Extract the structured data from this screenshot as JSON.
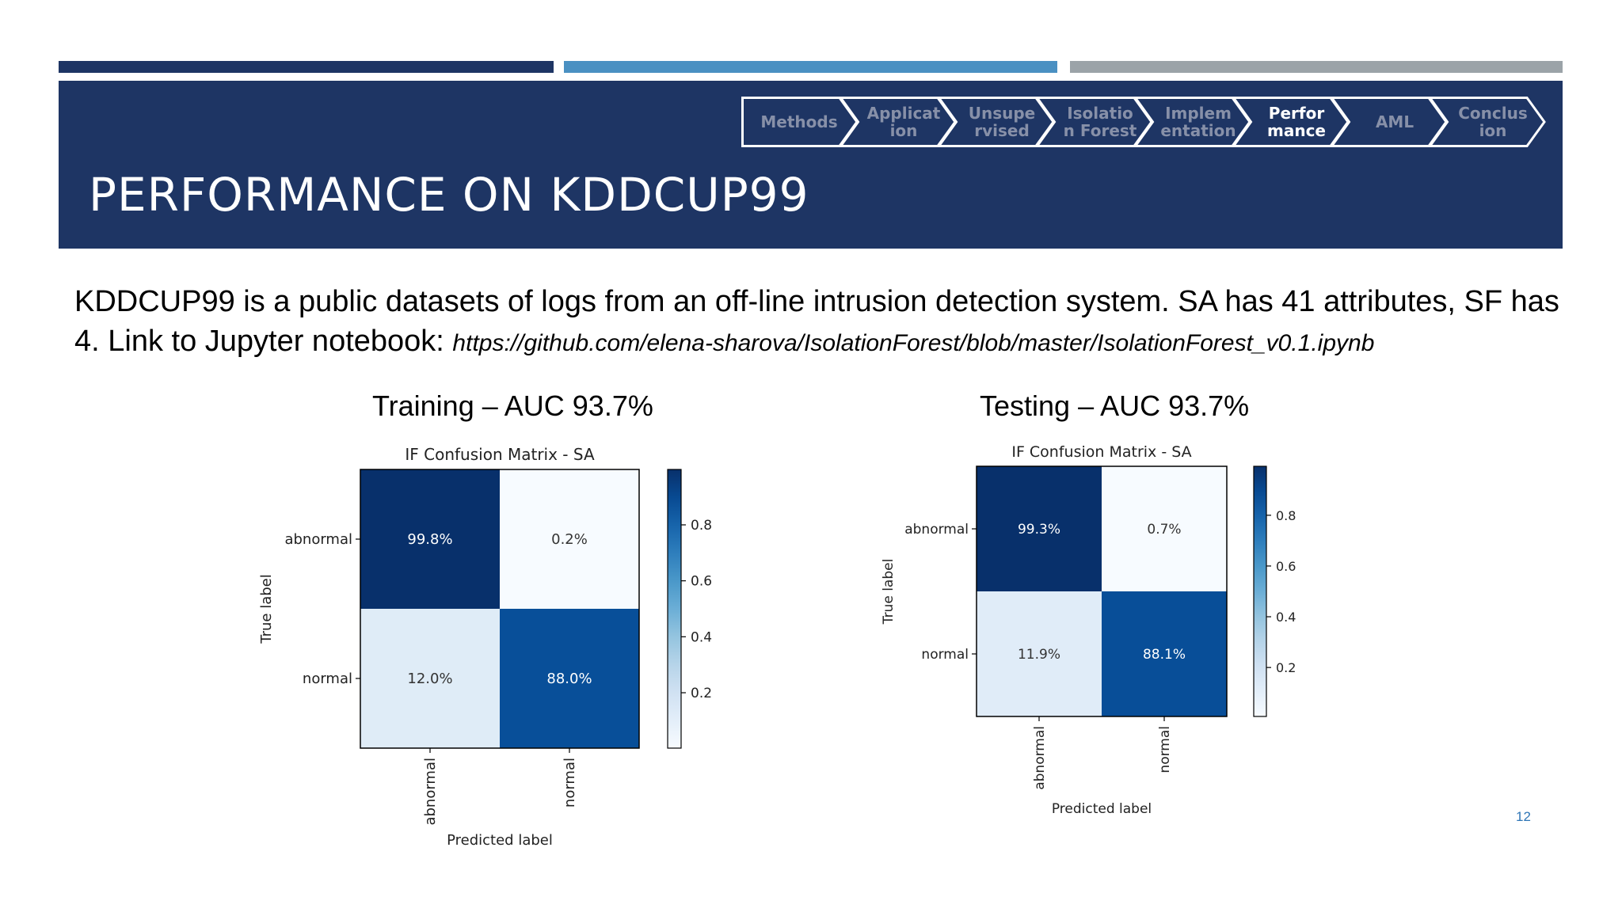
{
  "colors": {
    "bar1": "#1e3564",
    "bar2": "#4a90c2",
    "bar3": "#9ba3a8",
    "header": "#1e3564"
  },
  "header": {
    "title": "PERFORMANCE ON KDDCUP99"
  },
  "nav": {
    "items": [
      {
        "label": "Methods",
        "active": false
      },
      {
        "label": "Applicat\nion",
        "active": false
      },
      {
        "label": "Unsupe\nrvised",
        "active": false
      },
      {
        "label": "Isolatio\nn Forest",
        "active": false
      },
      {
        "label": "Implem\nentation",
        "active": false
      },
      {
        "label": "Perfor\nmance",
        "active": true
      },
      {
        "label": "AML",
        "active": false
      },
      {
        "label": "Conclus\nion",
        "active": false
      }
    ]
  },
  "body": {
    "line1": "KDDCUP99 is a public datasets of logs from an off-line intrusion detection system. SA has 41 attributes, SF has 4.  Link to Jupyter notebook: ",
    "link": "https://github.com/elena-sharova/IsolationForest/blob/master/IsolationForest_v0.1.ipynb"
  },
  "training": {
    "subtitle": "Training – AUC 93.7%"
  },
  "testing": {
    "subtitle": "Testing – AUC 93.7%"
  },
  "page_number": "12",
  "chart_data": [
    {
      "type": "heatmap",
      "title": "IF Confusion Matrix - SA",
      "xlabel": "Predicted label",
      "ylabel": "True label",
      "x_categories": [
        "abnormal",
        "normal"
      ],
      "y_categories": [
        "abnormal",
        "normal"
      ],
      "values": [
        [
          0.998,
          0.002
        ],
        [
          0.12,
          0.88
        ]
      ],
      "labels": [
        [
          "99.8%",
          "0.2%"
        ],
        [
          "12.0%",
          "88.0%"
        ]
      ],
      "colorbar_ticks": [
        "0.8",
        "0.6",
        "0.4",
        "0.2"
      ],
      "colorbar_range": [
        0.002,
        0.998
      ],
      "colormap": "Blues"
    },
    {
      "type": "heatmap",
      "title": "IF Confusion Matrix - SA",
      "xlabel": "Predicted label",
      "ylabel": "True label",
      "x_categories": [
        "abnormal",
        "normal"
      ],
      "y_categories": [
        "abnormal",
        "normal"
      ],
      "values": [
        [
          0.993,
          0.007
        ],
        [
          0.119,
          0.881
        ]
      ],
      "labels": [
        [
          "99.3%",
          "0.7%"
        ],
        [
          "11.9%",
          "88.1%"
        ]
      ],
      "colorbar_ticks": [
        "0.8",
        "0.6",
        "0.4",
        "0.2"
      ],
      "colorbar_range": [
        0.007,
        0.993
      ],
      "colormap": "Blues"
    }
  ]
}
